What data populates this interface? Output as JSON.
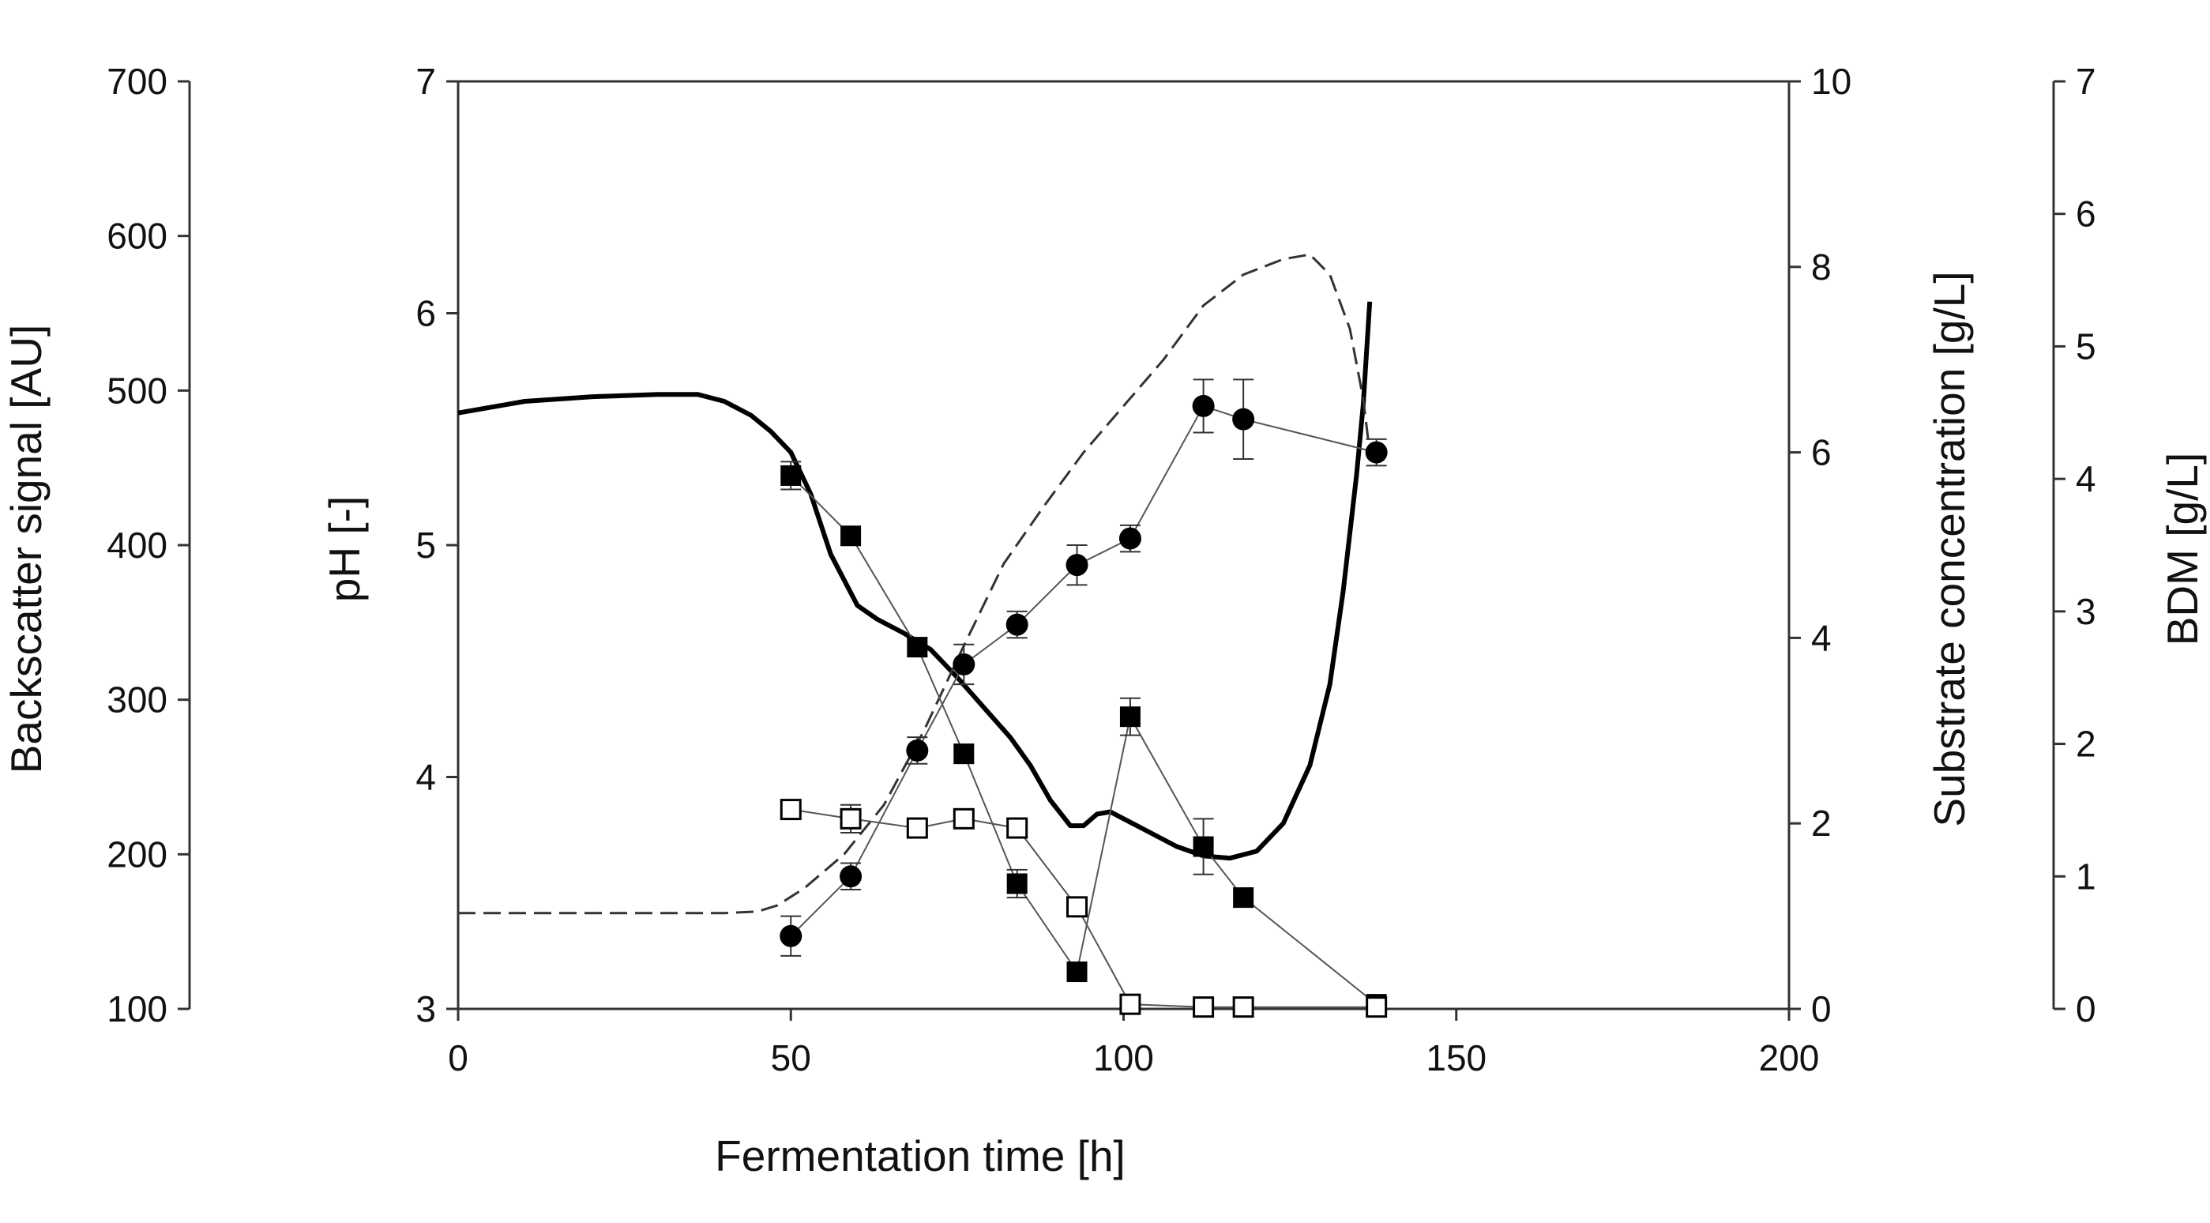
{
  "chart_data": {
    "type": "line",
    "title": "",
    "x": {
      "label": "Fermentation time [h]",
      "range": [
        0,
        200
      ],
      "ticks": [
        0,
        50,
        100,
        150,
        200
      ]
    },
    "axes": {
      "backscatter": {
        "label": "Backscatter signal [AU]",
        "range": [
          100,
          700
        ],
        "ticks": [
          100,
          200,
          300,
          400,
          500,
          600,
          700
        ]
      },
      "ph": {
        "label": "pH [-]",
        "range": [
          3,
          7
        ],
        "ticks": [
          3,
          4,
          5,
          6,
          7
        ]
      },
      "substrate": {
        "label": "Substrate concentration [g/L]",
        "range": [
          0,
          10
        ],
        "ticks": [
          0,
          2,
          4,
          6,
          8,
          10
        ]
      },
      "bdm": {
        "label": "BDM [g/L]",
        "range": [
          0,
          7
        ],
        "ticks": [
          0,
          1,
          2,
          3,
          4,
          5,
          6,
          7
        ]
      }
    },
    "grid": false,
    "legend": "none",
    "series": [
      {
        "kind": "line-solid",
        "axis": "ph",
        "color": "#000000",
        "points": [
          [
            0,
            5.57
          ],
          [
            10,
            5.62
          ],
          [
            20,
            5.64
          ],
          [
            30,
            5.65
          ],
          [
            36,
            5.65
          ],
          [
            40,
            5.62
          ],
          [
            44,
            5.56
          ],
          [
            47,
            5.49
          ],
          [
            50,
            5.4
          ],
          [
            53,
            5.22
          ],
          [
            56,
            4.96
          ],
          [
            60,
            4.74
          ],
          [
            63,
            4.68
          ],
          [
            67,
            4.62
          ],
          [
            71,
            4.55
          ],
          [
            75,
            4.43
          ],
          [
            79,
            4.3
          ],
          [
            83,
            4.17
          ],
          [
            86,
            4.05
          ],
          [
            89,
            3.9
          ],
          [
            92,
            3.79
          ],
          [
            94,
            3.79
          ],
          [
            96,
            3.84
          ],
          [
            98,
            3.85
          ],
          [
            100,
            3.82
          ],
          [
            104,
            3.76
          ],
          [
            108,
            3.7
          ],
          [
            112,
            3.66
          ],
          [
            116,
            3.65
          ],
          [
            120,
            3.68
          ],
          [
            124,
            3.8
          ],
          [
            128,
            4.05
          ],
          [
            131,
            4.4
          ],
          [
            133,
            4.8
          ],
          [
            135,
            5.3
          ],
          [
            136,
            5.6
          ],
          [
            137,
            6.05
          ]
        ]
      },
      {
        "kind": "line-dashed",
        "axis": "backscatter",
        "color": "#333333",
        "points": [
          [
            0,
            162
          ],
          [
            20,
            162
          ],
          [
            40,
            162
          ],
          [
            45,
            163
          ],
          [
            48,
            167
          ],
          [
            52,
            178
          ],
          [
            58,
            200
          ],
          [
            64,
            232
          ],
          [
            70,
            280
          ],
          [
            76,
            335
          ],
          [
            82,
            388
          ],
          [
            88,
            425
          ],
          [
            94,
            460
          ],
          [
            100,
            490
          ],
          [
            106,
            520
          ],
          [
            112,
            555
          ],
          [
            118,
            575
          ],
          [
            124,
            585
          ],
          [
            128,
            588
          ],
          [
            131,
            575
          ],
          [
            134,
            540
          ],
          [
            136,
            495
          ],
          [
            137,
            460
          ]
        ]
      },
      {
        "kind": "markers",
        "marker": "filled-circle",
        "axis": "bdm",
        "color": "#000000",
        "points": [
          [
            50,
            0.55,
            0.15
          ],
          [
            59,
            1.0,
            0.1
          ],
          [
            69,
            1.95,
            0.1
          ],
          [
            76,
            2.6,
            0.15
          ],
          [
            84,
            2.9,
            0.1
          ],
          [
            93,
            3.35,
            0.15
          ],
          [
            101,
            3.55,
            0.1
          ],
          [
            112,
            4.55,
            0.2
          ],
          [
            118,
            4.45,
            0.3
          ],
          [
            138,
            4.2,
            0.1
          ]
        ]
      },
      {
        "kind": "markers",
        "marker": "filled-square",
        "axis": "substrate",
        "color": "#000000",
        "points": [
          [
            50,
            5.75,
            0.15
          ],
          [
            59,
            5.1,
            0.1
          ],
          [
            69,
            3.9,
            0.1
          ],
          [
            76,
            2.75,
            0.1
          ],
          [
            84,
            1.35,
            0.15
          ],
          [
            93,
            0.4,
            0.1
          ],
          [
            101,
            3.15,
            0.2
          ],
          [
            112,
            1.75,
            0.3
          ],
          [
            118,
            1.2,
            0.1
          ],
          [
            138,
            0.05,
            0.05
          ]
        ]
      },
      {
        "kind": "markers",
        "marker": "open-square",
        "axis": "substrate",
        "color": "#000000",
        "points": [
          [
            50,
            2.15,
            0.05
          ],
          [
            59,
            2.05,
            0.15
          ],
          [
            69,
            1.95,
            0.05
          ],
          [
            76,
            2.05,
            0.05
          ],
          [
            84,
            1.95,
            0.1
          ],
          [
            93,
            1.1,
            0.05
          ],
          [
            101,
            0.05,
            0.05
          ],
          [
            112,
            0.02,
            0.02
          ],
          [
            118,
            0.02,
            0.02
          ],
          [
            138,
            0.02,
            0.02
          ]
        ]
      }
    ]
  }
}
